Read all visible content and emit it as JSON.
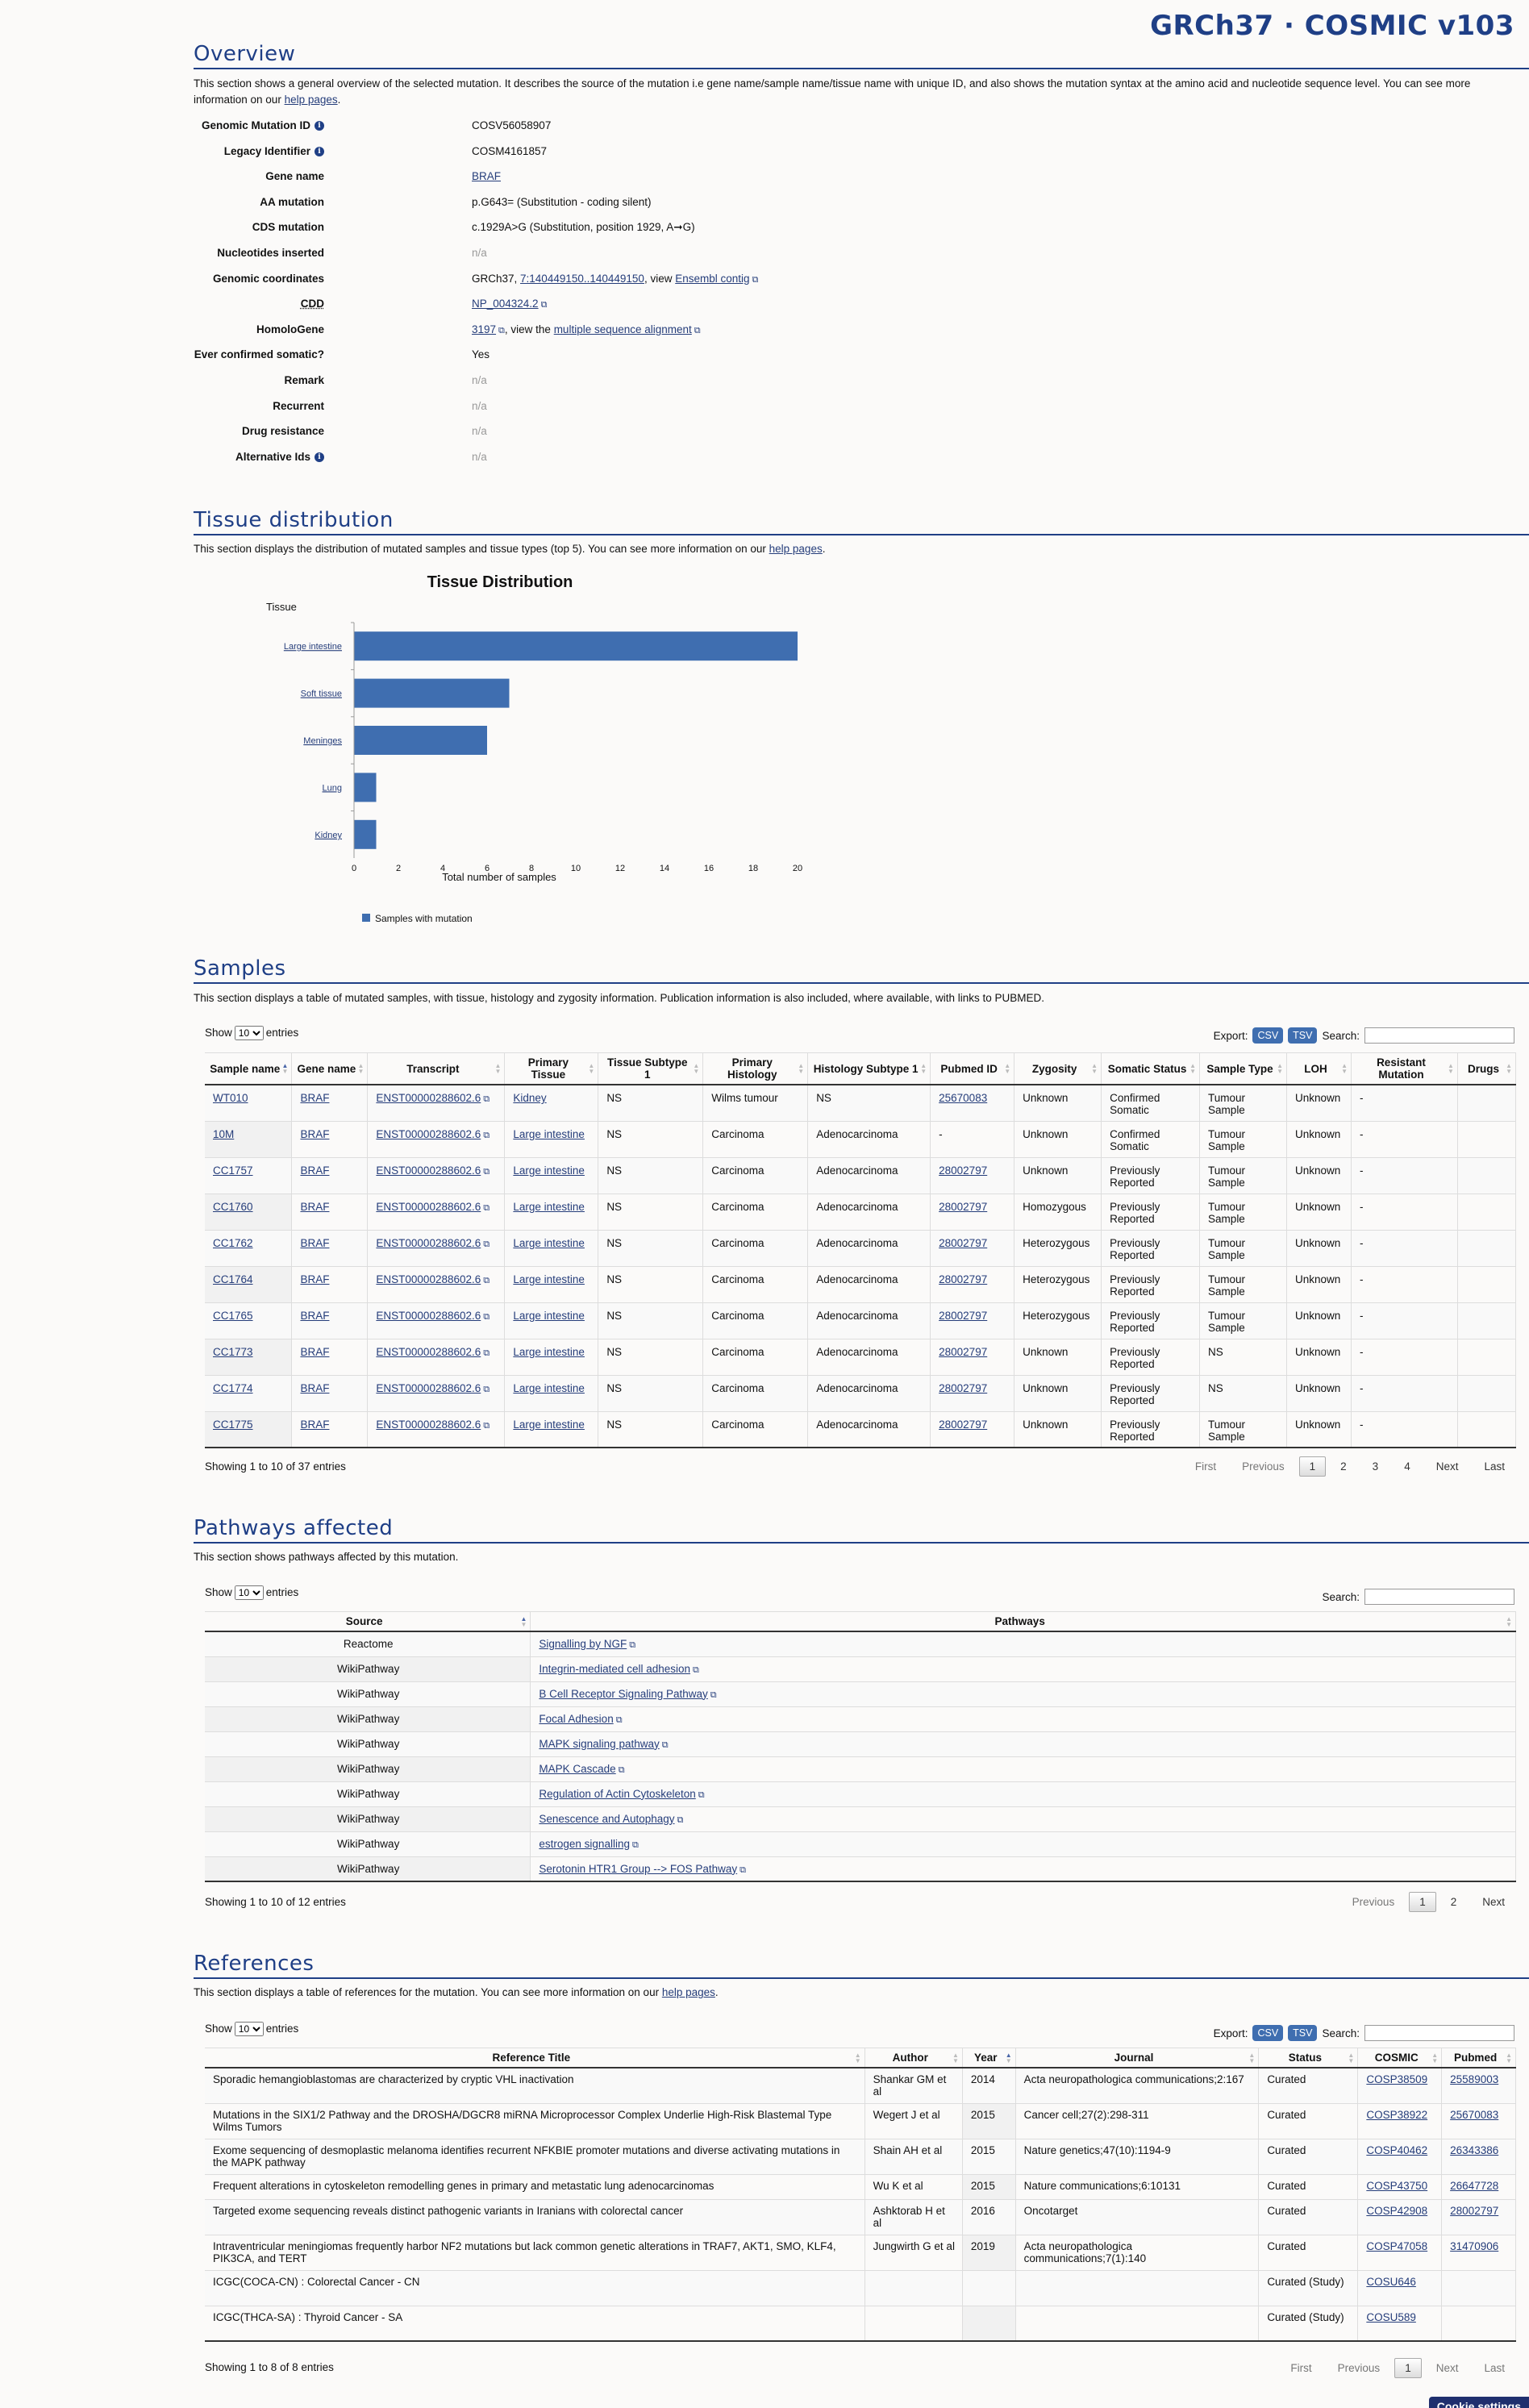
{
  "site_title": "GRCh37 · COSMIC v103",
  "overview": {
    "title": "Overview",
    "desc_before": "This section shows a general overview of the selected mutation. It describes the source of the mutation i.e gene name/sample name/tissue name with unique ID, and also shows the mutation syntax at the amino acid and nucleotide sequence level. You can see more information on our ",
    "desc_link": "help pages",
    "desc_after": ".",
    "fields": {
      "genomic_mutation_id": {
        "label": "Genomic Mutation ID",
        "value": "COSV56058907"
      },
      "legacy_identifier": {
        "label": "Legacy Identifier",
        "value": "COSM4161857"
      },
      "gene_name": {
        "label": "Gene name",
        "value": "BRAF"
      },
      "aa_mutation": {
        "label": "AA mutation",
        "value": "p.G643= (Substitution - coding silent)"
      },
      "cds_mutation": {
        "label": "CDS mutation",
        "value": "c.1929A>G (Substitution, position 1929, A➞G)"
      },
      "nucleotides_inserted": {
        "label": "Nucleotides inserted",
        "value": "n/a"
      },
      "genomic_coordinates": {
        "label": "Genomic coordinates",
        "prefix": "GRCh37, ",
        "link": "7:140449150..140449150",
        "mid": ", view ",
        "link2": "Ensembl contig"
      },
      "cdd": {
        "label": "CDD",
        "value": "NP_004324.2"
      },
      "homologene": {
        "label": "HomoloGene",
        "link": "3197",
        "mid": ", view the ",
        "link2": "multiple sequence alignment"
      },
      "ever_confirmed_somatic": {
        "label": "Ever confirmed somatic?",
        "value": "Yes"
      },
      "remark": {
        "label": "Remark",
        "value": "n/a"
      },
      "recurrent": {
        "label": "Recurrent",
        "value": "n/a"
      },
      "drug_resistance": {
        "label": "Drug resistance",
        "value": "n/a"
      },
      "alternative_ids": {
        "label": "Alternative Ids",
        "value": "n/a"
      }
    }
  },
  "tissue": {
    "title": "Tissue distribution",
    "desc_before": "This section displays the distribution of mutated samples and tissue types (top 5). You can see more information on our ",
    "desc_link": "help pages",
    "desc_after": "."
  },
  "chart_data": {
    "type": "bar",
    "orientation": "horizontal",
    "title": "Tissue Distribution",
    "ylabel": "Tissue",
    "xlabel": "Total number of samples",
    "categories": [
      "Large intestine",
      "Soft tissue",
      "Meninges",
      "Lung",
      "Kidney"
    ],
    "series": [
      {
        "name": "Samples with mutation",
        "values": [
          20,
          7,
          6,
          1,
          1
        ],
        "color": "#3f6eb0"
      }
    ],
    "xlim": [
      0,
      20
    ],
    "xticks": [
      0,
      2,
      4,
      6,
      8,
      10,
      12,
      14,
      16,
      18,
      20
    ],
    "grid": false,
    "legend": "bottom-left"
  },
  "samples": {
    "title": "Samples",
    "desc": "This section displays a table of mutated samples, with tissue, histology and zygosity information. Publication information is also included, where available, with links to PUBMED.",
    "length_before": "Show",
    "length_value": "10",
    "length_after": "entries",
    "export_label": "Export:",
    "csv": "CSV",
    "tsv": "TSV",
    "search_label": "Search:",
    "columns": [
      "Sample name",
      "Gene name",
      "Transcript",
      "Primary Tissue",
      "Tissue Subtype 1",
      "Primary Histology",
      "Histology Subtype 1",
      "Pubmed ID",
      "Zygosity",
      "Somatic Status",
      "Sample Type",
      "LOH",
      "Resistant Mutation",
      "Drugs"
    ],
    "rows": [
      [
        "WT010",
        "BRAF",
        "ENST00000288602.6",
        "Kidney",
        "NS",
        "Wilms tumour",
        "NS",
        "25670083",
        "Unknown",
        "Confirmed Somatic",
        "Tumour Sample",
        "Unknown",
        "-",
        ""
      ],
      [
        "10M",
        "BRAF",
        "ENST00000288602.6",
        "Large intestine",
        "NS",
        "Carcinoma",
        "Adenocarcinoma",
        "-",
        "Unknown",
        "Confirmed Somatic",
        "Tumour Sample",
        "Unknown",
        "-",
        ""
      ],
      [
        "CC1757",
        "BRAF",
        "ENST00000288602.6",
        "Large intestine",
        "NS",
        "Carcinoma",
        "Adenocarcinoma",
        "28002797",
        "Unknown",
        "Previously Reported",
        "Tumour Sample",
        "Unknown",
        "-",
        ""
      ],
      [
        "CC1760",
        "BRAF",
        "ENST00000288602.6",
        "Large intestine",
        "NS",
        "Carcinoma",
        "Adenocarcinoma",
        "28002797",
        "Homozygous",
        "Previously Reported",
        "Tumour Sample",
        "Unknown",
        "-",
        ""
      ],
      [
        "CC1762",
        "BRAF",
        "ENST00000288602.6",
        "Large intestine",
        "NS",
        "Carcinoma",
        "Adenocarcinoma",
        "28002797",
        "Heterozygous",
        "Previously Reported",
        "Tumour Sample",
        "Unknown",
        "-",
        ""
      ],
      [
        "CC1764",
        "BRAF",
        "ENST00000288602.6",
        "Large intestine",
        "NS",
        "Carcinoma",
        "Adenocarcinoma",
        "28002797",
        "Heterozygous",
        "Previously Reported",
        "Tumour Sample",
        "Unknown",
        "-",
        ""
      ],
      [
        "CC1765",
        "BRAF",
        "ENST00000288602.6",
        "Large intestine",
        "NS",
        "Carcinoma",
        "Adenocarcinoma",
        "28002797",
        "Heterozygous",
        "Previously Reported",
        "Tumour Sample",
        "Unknown",
        "-",
        ""
      ],
      [
        "CC1773",
        "BRAF",
        "ENST00000288602.6",
        "Large intestine",
        "NS",
        "Carcinoma",
        "Adenocarcinoma",
        "28002797",
        "Unknown",
        "Previously Reported",
        "NS",
        "Unknown",
        "-",
        ""
      ],
      [
        "CC1774",
        "BRAF",
        "ENST00000288602.6",
        "Large intestine",
        "NS",
        "Carcinoma",
        "Adenocarcinoma",
        "28002797",
        "Unknown",
        "Previously Reported",
        "NS",
        "Unknown",
        "-",
        ""
      ],
      [
        "CC1775",
        "BRAF",
        "ENST00000288602.6",
        "Large intestine",
        "NS",
        "Carcinoma",
        "Adenocarcinoma",
        "28002797",
        "Unknown",
        "Previously Reported",
        "Tumour Sample",
        "Unknown",
        "-",
        ""
      ]
    ],
    "info": "Showing 1 to 10 of 37 entries",
    "pager": [
      "First",
      "Previous",
      "1",
      "2",
      "3",
      "4",
      "Next",
      "Last"
    ]
  },
  "pathways": {
    "title": "Pathways affected",
    "desc": "This section shows pathways affected by this mutation.",
    "length_before": "Show",
    "length_value": "10",
    "length_after": "entries",
    "search_label": "Search:",
    "columns": [
      "Source",
      "Pathways"
    ],
    "rows": [
      [
        "Reactome",
        "Signalling by NGF"
      ],
      [
        "WikiPathway",
        "Integrin-mediated cell adhesion"
      ],
      [
        "WikiPathway",
        "B Cell Receptor Signaling Pathway"
      ],
      [
        "WikiPathway",
        "Focal Adhesion"
      ],
      [
        "WikiPathway",
        "MAPK signaling pathway"
      ],
      [
        "WikiPathway",
        "MAPK Cascade"
      ],
      [
        "WikiPathway",
        "Regulation of Actin Cytoskeleton"
      ],
      [
        "WikiPathway",
        "Senescence and Autophagy"
      ],
      [
        "WikiPathway",
        "estrogen signalling"
      ],
      [
        "WikiPathway",
        "Serotonin HTR1 Group --> FOS Pathway"
      ]
    ],
    "info": "Showing 1 to 10 of 12 entries",
    "pager": [
      "Previous",
      "1",
      "2",
      "Next"
    ]
  },
  "references": {
    "title": "References",
    "desc_before": "This section displays a table of references for the mutation. You can see more information on our ",
    "desc_link": "help pages",
    "desc_after": ".",
    "length_before": "Show",
    "length_value": "10",
    "length_after": "entries",
    "export_label": "Export:",
    "csv": "CSV",
    "tsv": "TSV",
    "search_label": "Search:",
    "columns": [
      "Reference Title",
      "Author",
      "Year",
      "Journal",
      "Status",
      "COSMIC",
      "Pubmed"
    ],
    "rows": [
      [
        "Sporadic hemangioblastomas are characterized by cryptic VHL inactivation",
        "Shankar GM et al",
        "2014",
        "Acta neuropathologica communications;2:167",
        "Curated",
        "COSP38509",
        "25589003"
      ],
      [
        "Mutations in the SIX1/2 Pathway and the DROSHA/DGCR8 miRNA Microprocessor Complex Underlie High-Risk Blastemal Type Wilms Tumors",
        "Wegert J et al",
        "2015",
        "Cancer cell;27(2):298-311",
        "Curated",
        "COSP38922",
        "25670083"
      ],
      [
        "Exome sequencing of desmoplastic melanoma identifies recurrent NFKBIE promoter mutations and diverse activating mutations in the MAPK pathway",
        "Shain AH et al",
        "2015",
        "Nature genetics;47(10):1194-9",
        "Curated",
        "COSP40462",
        "26343386"
      ],
      [
        "Frequent alterations in cytoskeleton remodelling genes in primary and metastatic lung adenocarcinomas",
        "Wu K et al",
        "2015",
        "Nature communications;6:10131",
        "Curated",
        "COSP43750",
        "26647728"
      ],
      [
        "Targeted exome sequencing reveals distinct pathogenic variants in Iranians with colorectal cancer",
        "Ashktorab H et al",
        "2016",
        "Oncotarget",
        "Curated",
        "COSP42908",
        "28002797"
      ],
      [
        "Intraventricular meningiomas frequently harbor NF2 mutations but lack common genetic alterations in TRAF7, AKT1, SMO, KLF4, PIK3CA, and TERT",
        "Jungwirth G et al",
        "2019",
        "Acta neuropathologica communications;7(1):140",
        "Curated",
        "COSP47058",
        "31470906"
      ],
      [
        "ICGC(COCA-CN) : Colorectal Cancer - CN",
        "",
        "",
        "",
        "Curated (Study)",
        "COSU646",
        ""
      ],
      [
        "ICGC(THCA-SA) : Thyroid Cancer - SA",
        "",
        "",
        "",
        "Curated (Study)",
        "COSU589",
        ""
      ]
    ],
    "info": "Showing 1 to 8 of 8 entries",
    "pager": [
      "First",
      "Previous",
      "1",
      "Next",
      "Last"
    ]
  },
  "cookie_button": "Cookie settings"
}
